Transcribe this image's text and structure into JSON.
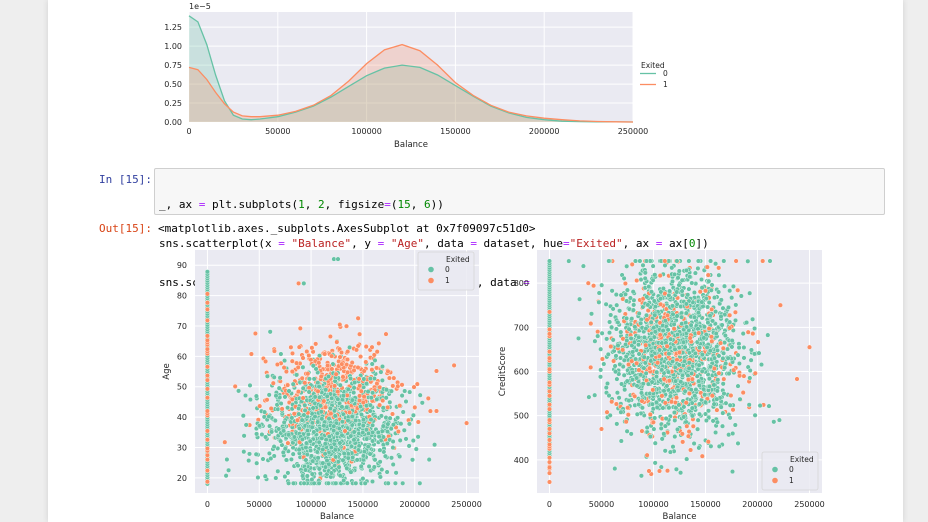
{
  "colors": {
    "exited_0": "#66c2a5",
    "exited_1": "#fc8d62",
    "plot_bg": "#eaeaf2",
    "grid": "#ffffff",
    "tick_text": "#262626"
  },
  "kde_plot": {
    "chart_data": {
      "type": "area",
      "title": "",
      "xlabel": "Balance",
      "ylabel": "",
      "offset_text": "1e−5",
      "xlim": [
        0,
        250000
      ],
      "ylim": [
        0,
        1.45
      ],
      "x_ticks": [
        "0",
        "50000",
        "100000",
        "150000",
        "200000",
        "250000"
      ],
      "y_ticks": [
        "0.00",
        "0.25",
        "0.50",
        "0.75",
        "1.00",
        "1.25"
      ],
      "legend": {
        "title": "Exited",
        "entries": [
          "0",
          "1"
        ],
        "position": "right-outside"
      },
      "series": [
        {
          "name": "0",
          "x": [
            0,
            5000,
            10000,
            15000,
            20000,
            25000,
            30000,
            35000,
            40000,
            50000,
            60000,
            70000,
            80000,
            90000,
            100000,
            110000,
            120000,
            130000,
            140000,
            150000,
            160000,
            170000,
            180000,
            190000,
            200000,
            210000,
            220000,
            230000,
            240000,
            250000
          ],
          "y": [
            1.4,
            1.32,
            1.02,
            0.62,
            0.28,
            0.09,
            0.04,
            0.03,
            0.04,
            0.07,
            0.13,
            0.21,
            0.33,
            0.47,
            0.61,
            0.71,
            0.75,
            0.72,
            0.62,
            0.48,
            0.34,
            0.21,
            0.12,
            0.06,
            0.03,
            0.01,
            0.005,
            0.002,
            0.001,
            0.0
          ]
        },
        {
          "name": "1",
          "x": [
            0,
            5000,
            10000,
            15000,
            20000,
            25000,
            30000,
            35000,
            40000,
            50000,
            60000,
            70000,
            80000,
            90000,
            100000,
            110000,
            120000,
            130000,
            140000,
            150000,
            160000,
            170000,
            180000,
            190000,
            200000,
            210000,
            220000,
            230000,
            240000,
            250000
          ],
          "y": [
            0.72,
            0.69,
            0.56,
            0.39,
            0.24,
            0.13,
            0.08,
            0.07,
            0.07,
            0.09,
            0.14,
            0.22,
            0.35,
            0.54,
            0.77,
            0.95,
            1.02,
            0.94,
            0.75,
            0.52,
            0.35,
            0.22,
            0.13,
            0.08,
            0.05,
            0.03,
            0.015,
            0.007,
            0.003,
            0.0
          ]
        }
      ],
      "grid": true
    }
  },
  "code_cell": {
    "in_prompt": "In [15]:",
    "lines": [
      "_, ax = plt.subplots(1, 2, figsize=(15, 6))",
      "sns.scatterplot(x = \"Balance\", y = \"Age\", data = dataset, hue=\"Exited\", ax = ax[0])",
      "sns.scatterplot(x = \"Balance\", y = \"CreditScore\", data = dataset, hue=\"Exited\", ax = ax[1])"
    ]
  },
  "output_cell": {
    "out_prompt": "Out[15]:",
    "text": "<matplotlib.axes._subplots.AxesSubplot at 0x7f09097c51d0>"
  },
  "scatter_plots": {
    "chart_data": [
      {
        "type": "scatter",
        "title": "",
        "xlabel": "Balance",
        "ylabel": "Age",
        "xlim": [
          -12000,
          262000
        ],
        "ylim": [
          15,
          95
        ],
        "x_ticks": [
          "0",
          "50000",
          "100000",
          "150000",
          "200000",
          "250000"
        ],
        "y_ticks": [
          "20",
          "30",
          "40",
          "50",
          "60",
          "70",
          "80",
          "90"
        ],
        "legend": {
          "title": "Exited",
          "entries": [
            "0",
            "1"
          ],
          "position": "upper right"
        },
        "grid": true,
        "series": [
          {
            "name": "0",
            "zero_balance_column": {
              "y_min": 18,
              "y_max": 88
            },
            "cluster": {
              "x_mean": 120000,
              "x_sd": 30000,
              "y_mean": 36,
              "y_sd": 9,
              "count": 1400
            }
          },
          {
            "name": "1",
            "zero_balance_column": {
              "y_min": 18,
              "y_max": 84
            },
            "cluster": {
              "x_mean": 120000,
              "x_sd": 32000,
              "y_mean": 48,
              "y_sd": 9,
              "count": 520
            }
          }
        ],
        "notable_points": [
          {
            "x": 122000,
            "y": 92,
            "exited": 0
          },
          {
            "x": 126000,
            "y": 92,
            "exited": 0
          },
          {
            "x": 88000,
            "y": 84,
            "exited": 1
          },
          {
            "x": 93000,
            "y": 84,
            "exited": 0
          },
          {
            "x": 250000,
            "y": 38,
            "exited": 1
          },
          {
            "x": 238000,
            "y": 57,
            "exited": 1
          },
          {
            "x": 221000,
            "y": 42,
            "exited": 1
          },
          {
            "x": 214000,
            "y": 26,
            "exited": 0
          }
        ]
      },
      {
        "type": "scatter",
        "title": "",
        "xlabel": "Balance",
        "ylabel": "CreditScore",
        "xlim": [
          -12000,
          262000
        ],
        "ylim": [
          325,
          875
        ],
        "x_ticks": [
          "0",
          "50000",
          "100000",
          "150000",
          "200000",
          "250000"
        ],
        "y_ticks": [
          "400",
          "500",
          "600",
          "700",
          "800"
        ],
        "legend": {
          "title": "Exited",
          "entries": [
            "0",
            "1"
          ],
          "position": "lower right"
        },
        "grid": true,
        "series": [
          {
            "name": "0",
            "zero_balance_column": {
              "y_min": 405,
              "y_max": 850
            },
            "cluster": {
              "x_mean": 120000,
              "x_sd": 30000,
              "y_mean": 650,
              "y_sd": 95,
              "count": 1500
            }
          },
          {
            "name": "1",
            "zero_balance_column": {
              "y_min": 350,
              "y_max": 760
            },
            "cluster": {
              "x_mean": 120000,
              "x_sd": 32000,
              "y_mean": 640,
              "y_sd": 100,
              "count": 380
            }
          }
        ],
        "notable_points": [
          {
            "x": 250000,
            "y": 655,
            "exited": 1
          },
          {
            "x": 238000,
            "y": 583,
            "exited": 1
          },
          {
            "x": 221000,
            "y": 490,
            "exited": 0
          },
          {
            "x": 222000,
            "y": 750,
            "exited": 1
          },
          {
            "x": 205000,
            "y": 850,
            "exited": 1
          },
          {
            "x": 212000,
            "y": 850,
            "exited": 0
          },
          {
            "x": 0,
            "y": 350,
            "exited": 1
          },
          {
            "x": 0,
            "y": 383,
            "exited": 1
          }
        ]
      }
    ]
  }
}
